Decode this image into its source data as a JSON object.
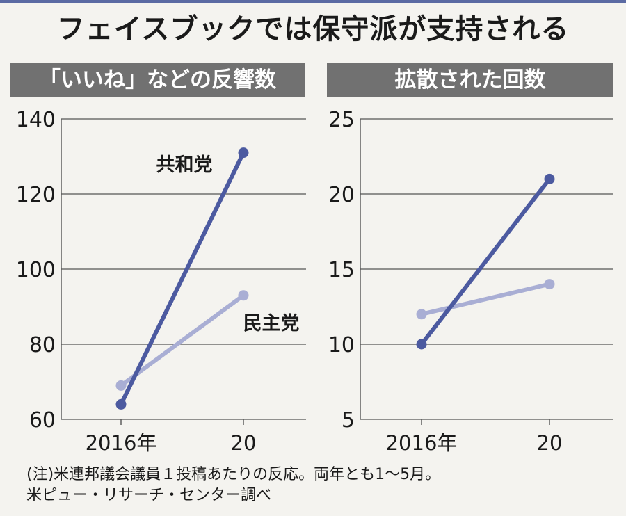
{
  "title": "フェイスブックでは保守派が支持される",
  "note": {
    "line1": "(注)米連邦議会議員１投稿あたりの反応。両年とも1～5月。",
    "line2": "米ピュー・リサーチ・センター調べ"
  },
  "chart_data": [
    {
      "type": "line",
      "title": "「いいね」などの反響数",
      "categories": [
        "2016年",
        "20"
      ],
      "ylim": [
        60,
        140
      ],
      "yticks": [
        60,
        80,
        100,
        120,
        140
      ],
      "grid": true,
      "legend": "inline",
      "series": [
        {
          "name": "共和党",
          "color": "#4c5aa0",
          "values": [
            64,
            131
          ]
        },
        {
          "name": "民主党",
          "color": "#a9aed4",
          "values": [
            69,
            93
          ]
        }
      ]
    },
    {
      "type": "line",
      "title": "拡散された回数",
      "categories": [
        "2016年",
        "20"
      ],
      "ylim": [
        5,
        25
      ],
      "yticks": [
        5,
        10,
        15,
        20,
        25
      ],
      "grid": true,
      "series": [
        {
          "name": "共和党",
          "color": "#4c5aa0",
          "values": [
            10,
            21
          ]
        },
        {
          "name": "民主党",
          "color": "#a9aed4",
          "values": [
            12,
            14
          ]
        }
      ]
    }
  ]
}
